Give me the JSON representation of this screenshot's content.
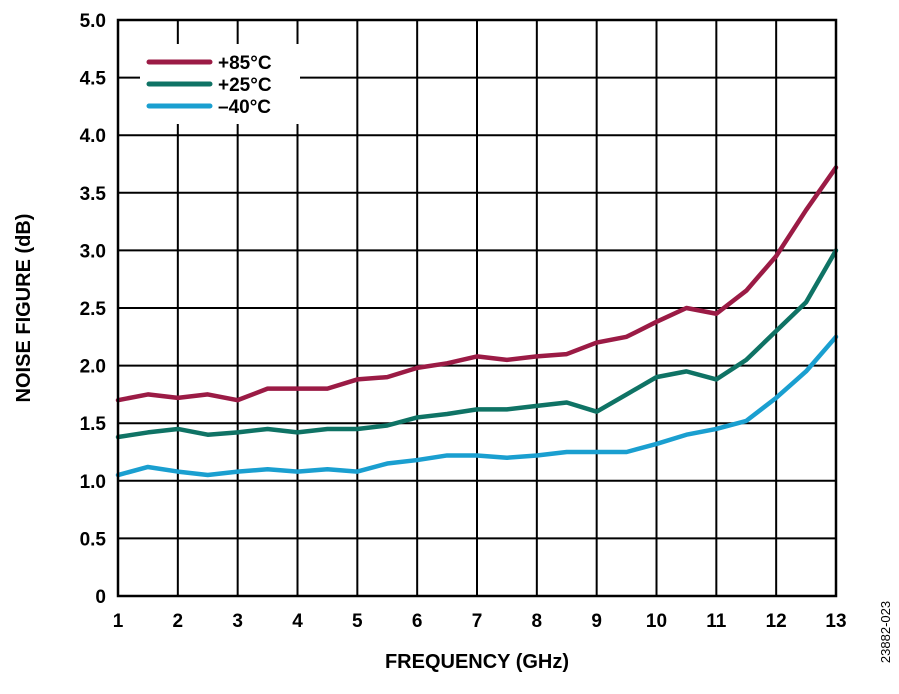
{
  "chart_data": {
    "type": "line",
    "title": "",
    "xlabel": "FREQUENCY (GHz)",
    "ylabel": "NOISE FIGURE (dB)",
    "xlim": [
      1,
      13
    ],
    "ylim": [
      0,
      5.0
    ],
    "xticks": [
      "1",
      "2",
      "3",
      "4",
      "5",
      "6",
      "7",
      "8",
      "9",
      "10",
      "11",
      "12",
      "13"
    ],
    "yticks": [
      "0",
      "0.5",
      "1.0",
      "1.5",
      "2.0",
      "2.5",
      "3.0",
      "3.5",
      "4.0",
      "4.5",
      "5.0"
    ],
    "grid": true,
    "legend_position": "top-left",
    "x": [
      1,
      1.5,
      2,
      2.5,
      3,
      3.5,
      4,
      4.5,
      5,
      5.5,
      6,
      6.5,
      7,
      7.5,
      8,
      8.5,
      9,
      9.5,
      10,
      10.5,
      11,
      11.5,
      12,
      12.5,
      13
    ],
    "series": [
      {
        "name": "+85°C",
        "color": "#9b1b45",
        "values": [
          1.7,
          1.75,
          1.72,
          1.75,
          1.7,
          1.8,
          1.8,
          1.8,
          1.88,
          1.9,
          1.98,
          2.02,
          2.08,
          2.05,
          2.08,
          2.1,
          2.2,
          2.25,
          2.38,
          2.5,
          2.45,
          2.65,
          2.95,
          3.35,
          3.72
        ]
      },
      {
        "name": "+25°C",
        "color": "#0f7365",
        "values": [
          1.38,
          1.42,
          1.45,
          1.4,
          1.42,
          1.45,
          1.42,
          1.45,
          1.45,
          1.48,
          1.55,
          1.58,
          1.62,
          1.62,
          1.65,
          1.68,
          1.6,
          1.75,
          1.9,
          1.95,
          1.88,
          2.05,
          2.3,
          2.55,
          3.0
        ]
      },
      {
        "name": "–40°C",
        "color": "#1a9fd0",
        "values": [
          1.05,
          1.12,
          1.08,
          1.05,
          1.08,
          1.1,
          1.08,
          1.1,
          1.08,
          1.15,
          1.18,
          1.22,
          1.22,
          1.2,
          1.22,
          1.25,
          1.25,
          1.25,
          1.32,
          1.4,
          1.45,
          1.52,
          1.72,
          1.95,
          2.25
        ]
      }
    ]
  },
  "figure_id": "23882-023"
}
